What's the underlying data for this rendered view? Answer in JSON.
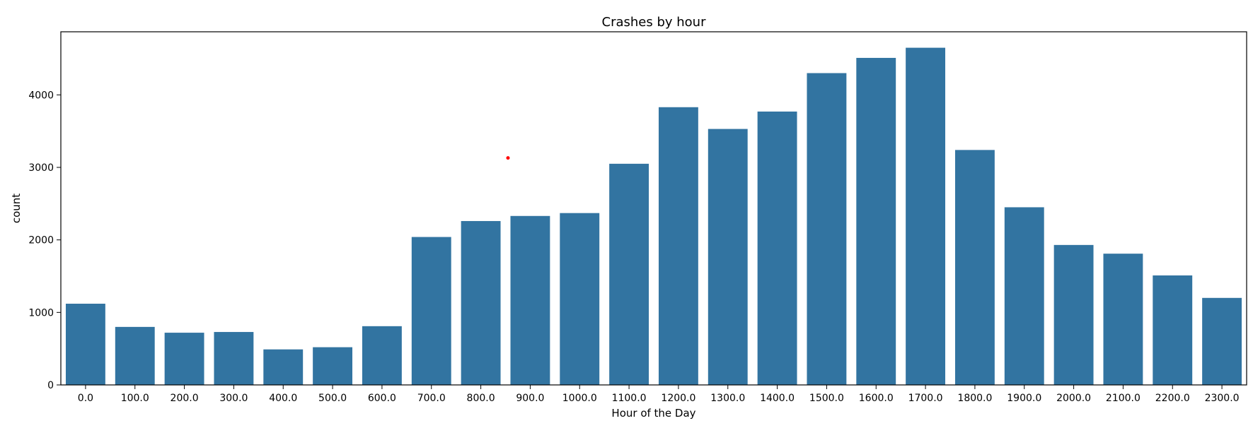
{
  "colors": {
    "bar": "#3274a1",
    "axis": "#000000",
    "marker": "#ff0000"
  },
  "chart_data": {
    "type": "bar",
    "title": "Crashes by hour",
    "xlabel": "Hour of the Day",
    "ylabel": "count",
    "ylim": [
      0,
      4870
    ],
    "yticks": [
      0,
      1000,
      2000,
      3000,
      4000
    ],
    "grid": false,
    "categories": [
      "0.0",
      "100.0",
      "200.0",
      "300.0",
      "400.0",
      "500.0",
      "600.0",
      "700.0",
      "800.0",
      "900.0",
      "1000.0",
      "1100.0",
      "1200.0",
      "1300.0",
      "1400.0",
      "1500.0",
      "1600.0",
      "1700.0",
      "1800.0",
      "1900.0",
      "2000.0",
      "2100.0",
      "2200.0",
      "2300.0"
    ],
    "values": [
      1120,
      800,
      720,
      730,
      490,
      520,
      810,
      2040,
      2260,
      2330,
      2370,
      3050,
      3830,
      3530,
      3770,
      4300,
      4510,
      4650,
      3240,
      2450,
      1930,
      1810,
      1510,
      1200
    ],
    "annotations": [
      {
        "type": "point",
        "x": 8.55,
        "y": 3130
      }
    ]
  }
}
